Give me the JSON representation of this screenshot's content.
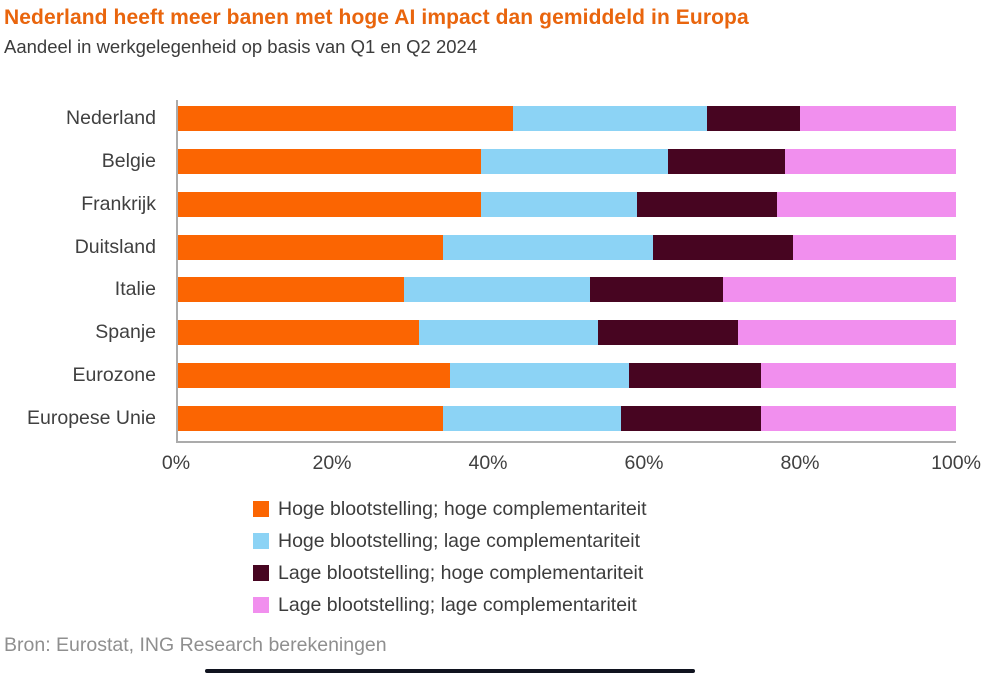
{
  "title": "Nederland heeft meer banen met hoge AI impact dan gemiddeld in Europa",
  "subtitle": "Aandeel in werkgelegenheid op basis van Q1 en Q2 2024",
  "source": "Bron: Eurostat, ING Research berekeningen",
  "colors": {
    "title_orange": "#e9650d",
    "series_orange": "#fb6502",
    "series_blue": "#8cd3f5",
    "series_dark": "#470521",
    "series_pink": "#f18fee",
    "axis_gray": "#ababab",
    "text_dark": "#404040",
    "source_gray": "#8f8f8f"
  },
  "chart_data": {
    "type": "bar",
    "orientation": "horizontal",
    "stacked": true,
    "unit": "%",
    "title": "Nederland heeft meer banen met hoge AI impact dan gemiddeld in Europa",
    "subtitle": "Aandeel in werkgelegenheid op basis van Q1 en Q2 2024",
    "xlabel": "",
    "ylabel": "",
    "xlim": [
      0,
      100
    ],
    "grid": false,
    "legend_position": "bottom",
    "categories": [
      "Nederland",
      "Belgie",
      "Frankrijk",
      "Duitsland",
      "Italie",
      "Spanje",
      "Eurozone",
      "Europese Unie"
    ],
    "x_ticks": [
      "0%",
      "20%",
      "40%",
      "60%",
      "80%",
      "100%"
    ],
    "series": [
      {
        "name": "Hoge blootstelling; hoge complementariteit",
        "color": "#fb6502",
        "values": [
          43,
          39,
          39,
          34,
          29,
          31,
          35,
          34
        ]
      },
      {
        "name": "Hoge blootstelling; lage complementariteit",
        "color": "#8cd3f5",
        "values": [
          25,
          24,
          20,
          27,
          24,
          23,
          23,
          23
        ]
      },
      {
        "name": "Lage blootstelling; hoge complementariteit",
        "color": "#470521",
        "values": [
          12,
          15,
          18,
          18,
          17,
          18,
          17,
          18
        ]
      },
      {
        "name": "Lage blootstelling; lage complementariteit",
        "color": "#f18fee",
        "values": [
          20,
          22,
          23,
          21,
          30,
          28,
          25,
          25
        ]
      }
    ]
  }
}
